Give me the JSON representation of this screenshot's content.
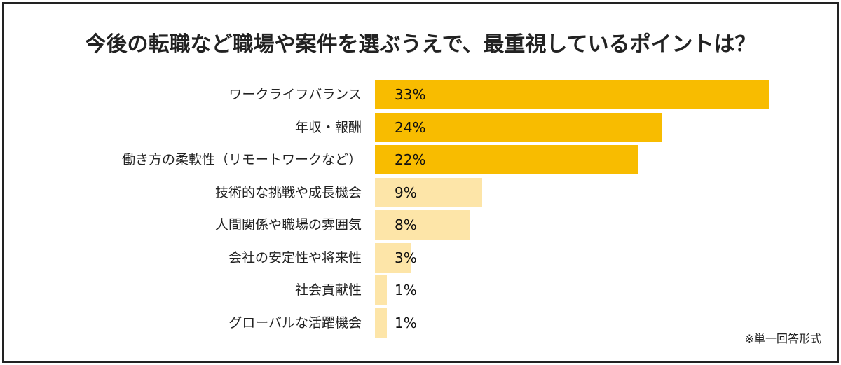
{
  "chart_data": {
    "type": "bar",
    "orientation": "horizontal",
    "title": "今後の転職など職場や案件を選ぶうえで、最重視しているポイントは？",
    "categories": [
      "ワークライフバランス",
      "年収・報酬",
      "働き方の柔軟性（リモートワークなど）",
      "技術的な挑戦や成長機会",
      "人間関係や職場の雰囲気",
      "会社の安定性や将来性",
      "社会貢献性",
      "グローバルな活躍機会"
    ],
    "values": [
      33,
      24,
      22,
      9,
      8,
      3,
      1,
      1
    ],
    "value_labels": [
      "33%",
      "24%",
      "22%",
      "9%",
      "8%",
      "3%",
      "1%",
      "1%"
    ],
    "unit": "%",
    "xlim": [
      0,
      33
    ],
    "grid": false,
    "colors": {
      "top3": "#F8BC00",
      "others": "#FDE5A8"
    },
    "note": "※単一回答形式"
  }
}
